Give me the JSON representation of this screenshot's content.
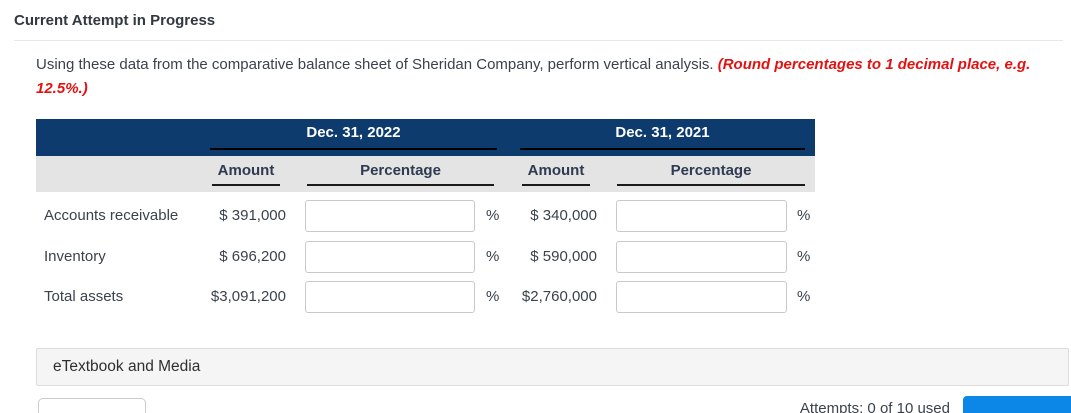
{
  "header": {
    "title": "Current Attempt in Progress"
  },
  "instruction": {
    "normal": "Using these data from the comparative balance sheet of Sheridan Company, perform vertical analysis. ",
    "emphasis_line1": "(Round percentages to 1 decimal place, e.g.",
    "emphasis_line2": "12.5%.)"
  },
  "table": {
    "year_groups": [
      {
        "title": "Dec. 31, 2022",
        "amount_header": "Amount",
        "percentage_header": "Percentage"
      },
      {
        "title": "Dec. 31, 2021",
        "amount_header": "Amount",
        "percentage_header": "Percentage"
      }
    ],
    "percent_sign": "%",
    "rows": [
      {
        "label": "Accounts receivable",
        "amount_2022": "$ 391,000",
        "percentage_2022_value": "",
        "amount_2021": "$ 340,000",
        "percentage_2021_value": ""
      },
      {
        "label": "Inventory",
        "amount_2022": "$ 696,200",
        "percentage_2022_value": "",
        "amount_2021": "$ 590,000",
        "percentage_2021_value": ""
      },
      {
        "label": "Total assets",
        "amount_2022": "$3,091,200",
        "percentage_2022_value": "",
        "amount_2021": "$2,760,000",
        "percentage_2021_value": ""
      }
    ]
  },
  "footer": {
    "etextbook_label": "eTextbook and Media",
    "attempts_text": "Attempts: 0 of 10 used"
  },
  "colors": {
    "navy_header": "#0e3b6e",
    "subheader_gray": "#e4e4e4",
    "accent_red": "#e41111",
    "primary_blue": "#0c87e8"
  }
}
